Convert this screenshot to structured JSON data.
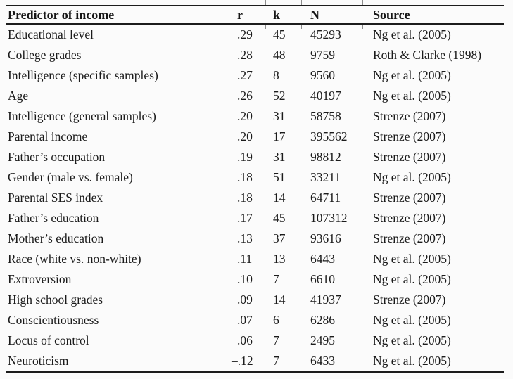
{
  "table": {
    "columns": [
      {
        "label": "Predictor of income"
      },
      {
        "label": "r"
      },
      {
        "label": "k"
      },
      {
        "label": "N"
      },
      {
        "label": "Source"
      }
    ],
    "rows": [
      {
        "predictor": "Educational level",
        "r": ".29",
        "k": "45",
        "N": "45293",
        "source": "Ng et al. (2005)"
      },
      {
        "predictor": "College grades",
        "r": ".28",
        "k": "48",
        "N": "9759",
        "source": "Roth & Clarke (1998)"
      },
      {
        "predictor": "Intelligence (specific samples)",
        "r": ".27",
        "k": "8",
        "N": "9560",
        "source": "Ng et al. (2005)"
      },
      {
        "predictor": "Age",
        "r": ".26",
        "k": "52",
        "N": "40197",
        "source": "Ng et al. (2005)"
      },
      {
        "predictor": "Intelligence (general samples)",
        "r": ".20",
        "k": "31",
        "N": "58758",
        "source": "Strenze (2007)"
      },
      {
        "predictor": "Parental income",
        "r": ".20",
        "k": "17",
        "N": "395562",
        "source": "Strenze (2007)"
      },
      {
        "predictor": "Father’s occupation",
        "r": ".19",
        "k": "31",
        "N": "98812",
        "source": "Strenze (2007)"
      },
      {
        "predictor": "Gender (male vs. female)",
        "r": ".18",
        "k": "51",
        "N": "33211",
        "source": "Ng et al. (2005)"
      },
      {
        "predictor": "Parental SES index",
        "r": ".18",
        "k": "14",
        "N": "64711",
        "source": "Strenze (2007)"
      },
      {
        "predictor": "Father’s education",
        "r": ".17",
        "k": "45",
        "N": "107312",
        "source": "Strenze (2007)"
      },
      {
        "predictor": "Mother’s education",
        "r": ".13",
        "k": "37",
        "N": "93616",
        "source": "Strenze (2007)"
      },
      {
        "predictor": "Race (white vs. non-white)",
        "r": ".11",
        "k": "13",
        "N": "6443",
        "source": "Ng et al. (2005)"
      },
      {
        "predictor": "Extroversion",
        "r": ".10",
        "k": "7",
        "N": "6610",
        "source": "Ng et al. (2005)"
      },
      {
        "predictor": "High school grades",
        "r": ".09",
        "k": "14",
        "N": "41937",
        "source": "Strenze (2007)"
      },
      {
        "predictor": "Conscientiousness",
        "r": ".07",
        "k": "6",
        "N": "6286",
        "source": "Ng et al. (2005)"
      },
      {
        "predictor": "Locus of control",
        "r": ".06",
        "k": "7",
        "N": "2495",
        "source": "Ng et al. (2005)"
      },
      {
        "predictor": "Neuroticism",
        "r": "–.12",
        "k": "7",
        "N": "6433",
        "source": "Ng et al. (2005)"
      }
    ]
  },
  "colors": {
    "background": "#fbfbfb",
    "text": "#1b1b1b",
    "rule": "#1c1c1c",
    "tick": "#8d8d8d"
  }
}
